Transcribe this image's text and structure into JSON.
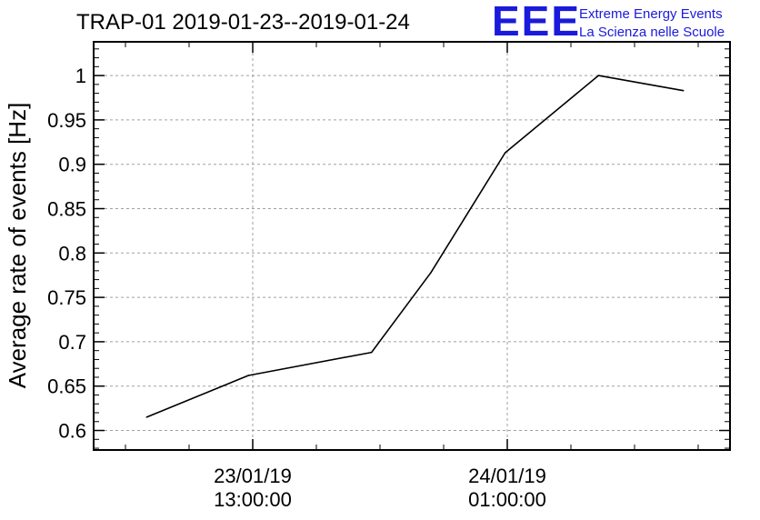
{
  "header": {
    "title": "TRAP-01 2019-01-23--2019-01-24",
    "logo_mark": "EEE",
    "logo_line1": "Extreme Energy Events",
    "logo_line2": "La Scienza nelle Scuole",
    "logo_color": "#1a1adc"
  },
  "chart_data": {
    "type": "line",
    "title": "TRAP-01 2019-01-23--2019-01-24",
    "ylabel": "Average rate of events [Hz]",
    "xlabel": "",
    "x_tick_labels": [
      {
        "date": "23/01/19",
        "time": "13:00:00"
      },
      {
        "date": "24/01/19",
        "time": "01:00:00"
      }
    ],
    "x_range_hours": [
      0,
      30
    ],
    "x_major_tick_hours": [
      7.5,
      19.5
    ],
    "x_minor_tick_hours": [
      1.5,
      4.5,
      10.5,
      13.5,
      16.5,
      22.5,
      25.5,
      28.5
    ],
    "ylim": [
      0.578,
      1.038
    ],
    "y_ticks": [
      0.6,
      0.65,
      0.7,
      0.75,
      0.8,
      0.85,
      0.9,
      0.95,
      1
    ],
    "y_tick_labels": [
      "0.6",
      "0.65",
      "0.7",
      "0.75",
      "0.8",
      "0.85",
      "0.9",
      "0.95",
      "1"
    ],
    "grid": true,
    "series": [
      {
        "x_hours": [
          2.5,
          7.3,
          13.1,
          15.9,
          19.4,
          23.8,
          27.8
        ],
        "y": [
          0.615,
          0.662,
          0.688,
          0.778,
          0.913,
          1.0,
          0.983
        ]
      }
    ],
    "line_color": "#000000",
    "grid_color": "#a0a0a0"
  }
}
